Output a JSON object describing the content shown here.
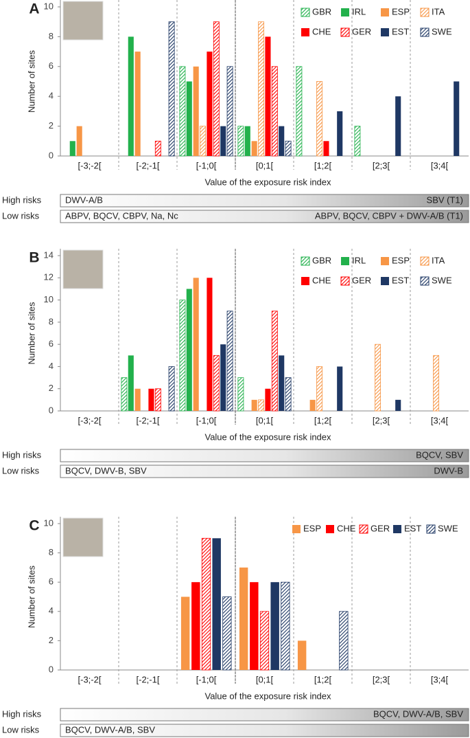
{
  "chart_data": [
    {
      "type": "bar",
      "panel": "A",
      "ylabel": "Number of sites",
      "xlabel": "Value of the exposure risk index",
      "categories": [
        "[-3;-2[",
        "[-2;-1[",
        "[-1;0[",
        "[0;1[",
        "[1;2[",
        "[2;3[",
        "[3;4["
      ],
      "ylim": [
        0,
        10
      ],
      "yticks": [
        0,
        2,
        4,
        6,
        8,
        10
      ],
      "legend": "upper right",
      "series": [
        {
          "name": "GBR",
          "color": "#22b14c",
          "pattern": "hatched",
          "values": [
            0,
            0,
            6,
            2,
            6,
            2,
            0
          ]
        },
        {
          "name": "IRL",
          "color": "#22b14c",
          "pattern": "solid",
          "values": [
            1,
            8,
            5,
            2,
            0,
            0,
            0
          ]
        },
        {
          "name": "ESP",
          "color": "#f79646",
          "pattern": "solid",
          "values": [
            2,
            7,
            6,
            1,
            0,
            0,
            0
          ]
        },
        {
          "name": "ITA",
          "color": "#f79646",
          "pattern": "hatched",
          "values": [
            0,
            0,
            2,
            9,
            5,
            0,
            0
          ]
        },
        {
          "name": "CHE",
          "color": "#ff0000",
          "pattern": "solid",
          "values": [
            0,
            0,
            7,
            8,
            1,
            0,
            0
          ]
        },
        {
          "name": "GER",
          "color": "#ff0000",
          "pattern": "hatched",
          "values": [
            0,
            1,
            9,
            6,
            0,
            0,
            0
          ]
        },
        {
          "name": "EST",
          "color": "#1f3864",
          "pattern": "solid",
          "values": [
            0,
            0,
            2,
            2,
            3,
            4,
            5
          ]
        },
        {
          "name": "SWE",
          "color": "#1f3864",
          "pattern": "hatched",
          "values": [
            0,
            9,
            6,
            1,
            0,
            0,
            0
          ]
        }
      ],
      "risk_rows": [
        {
          "label": "High risks",
          "left": "DWV-A/B",
          "right": "SBV (T1)"
        },
        {
          "label": "Low risks",
          "left": "ABPV, BQCV, CBPV, Na, Nc",
          "right": "ABPV, BQCV, CBPV + DWV-A/B (T1)"
        }
      ]
    },
    {
      "type": "bar",
      "panel": "B",
      "ylabel": "Number of sites",
      "xlabel": "Value of the exposure risk index",
      "categories": [
        "[-3;-2[",
        "[-2;-1[",
        "[-1;0[",
        "[0;1[",
        "[1;2[",
        "[2;3[",
        "[3;4["
      ],
      "ylim": [
        0,
        14
      ],
      "yticks": [
        0,
        2,
        4,
        6,
        8,
        10,
        12,
        14
      ],
      "legend": "upper right",
      "series": [
        {
          "name": "GBR",
          "color": "#22b14c",
          "pattern": "hatched",
          "values": [
            0,
            3,
            10,
            3,
            0,
            0,
            0
          ]
        },
        {
          "name": "IRL",
          "color": "#22b14c",
          "pattern": "solid",
          "values": [
            0,
            5,
            11,
            0,
            0,
            0,
            0
          ]
        },
        {
          "name": "ESP",
          "color": "#f79646",
          "pattern": "solid",
          "values": [
            0,
            2,
            12,
            1,
            1,
            0,
            0
          ]
        },
        {
          "name": "ITA",
          "color": "#f79646",
          "pattern": "hatched",
          "values": [
            0,
            0,
            0,
            1,
            4,
            6,
            5
          ]
        },
        {
          "name": "CHE",
          "color": "#ff0000",
          "pattern": "solid",
          "values": [
            0,
            2,
            12,
            2,
            0,
            0,
            0
          ]
        },
        {
          "name": "GER",
          "color": "#ff0000",
          "pattern": "hatched",
          "values": [
            0,
            2,
            5,
            9,
            0,
            0,
            0
          ]
        },
        {
          "name": "EST",
          "color": "#1f3864",
          "pattern": "solid",
          "values": [
            0,
            0,
            6,
            5,
            4,
            1,
            0
          ]
        },
        {
          "name": "SWE",
          "color": "#1f3864",
          "pattern": "hatched",
          "values": [
            0,
            4,
            9,
            3,
            0,
            0,
            0
          ]
        }
      ],
      "risk_rows": [
        {
          "label": "High risks",
          "right": "BQCV, SBV"
        },
        {
          "label": "Low risks",
          "left": "BQCV, DWV-B, SBV",
          "right": "DWV-B"
        }
      ]
    },
    {
      "type": "bar",
      "panel": "C",
      "ylabel": "Number of sites",
      "xlabel": "Value of the exposure risk index",
      "categories": [
        "[-3;-2[",
        "[-2;-1[",
        "[-1;0[",
        "[0;1[",
        "[1;2[",
        "[2;3[",
        "[3;4["
      ],
      "ylim": [
        0,
        10
      ],
      "yticks": [
        0,
        2,
        4,
        6,
        8,
        10
      ],
      "legend": "upper right",
      "series": [
        {
          "name": "ESP",
          "color": "#f79646",
          "pattern": "solid",
          "values": [
            0,
            0,
            5,
            7,
            2,
            0,
            0
          ]
        },
        {
          "name": "CHE",
          "color": "#ff0000",
          "pattern": "solid",
          "values": [
            0,
            0,
            6,
            6,
            0,
            0,
            0
          ]
        },
        {
          "name": "GER",
          "color": "#ff0000",
          "pattern": "hatched",
          "values": [
            0,
            0,
            9,
            4,
            0,
            0,
            0
          ]
        },
        {
          "name": "EST",
          "color": "#1f3864",
          "pattern": "solid",
          "values": [
            0,
            0,
            9,
            6,
            0,
            0,
            0
          ]
        },
        {
          "name": "SWE",
          "color": "#1f3864",
          "pattern": "hatched",
          "values": [
            0,
            0,
            5,
            6,
            4,
            0,
            0
          ]
        }
      ],
      "risk_rows": [
        {
          "label": "High risks",
          "right": "BQCV, DWV-A/B, SBV"
        },
        {
          "label": "Low risks",
          "left": "BQCV, DWV-A/B, SBV"
        }
      ]
    }
  ]
}
